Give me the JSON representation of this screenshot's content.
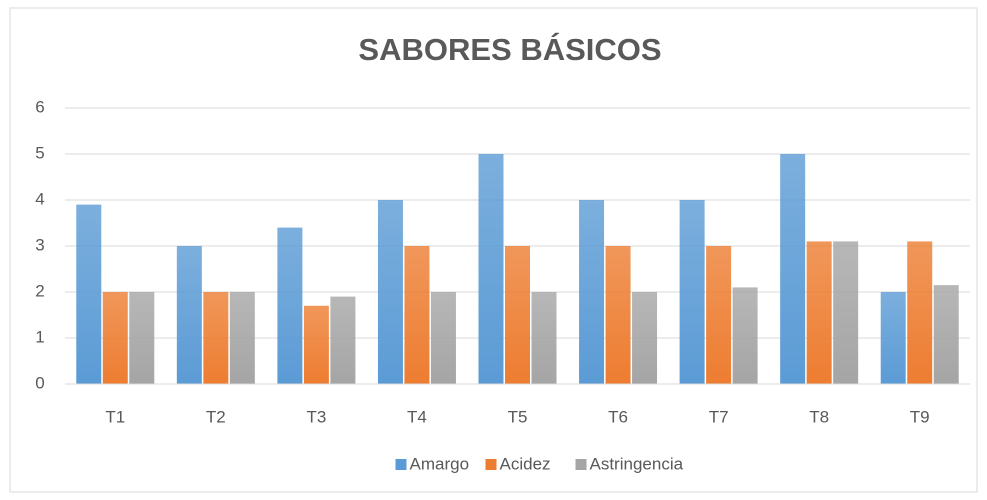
{
  "chart_data": {
    "type": "bar",
    "title": "SABORES BÁSICOS",
    "categories": [
      "T1",
      "T2",
      "T3",
      "T4",
      "T5",
      "T6",
      "T7",
      "T8",
      "T9"
    ],
    "series": [
      {
        "name": "Amargo",
        "color": "#5b9bd5",
        "values": [
          3.9,
          3,
          3.4,
          4,
          5,
          4,
          4,
          5,
          2
        ]
      },
      {
        "name": "Acidez",
        "color": "#ed7d31",
        "values": [
          2,
          2,
          1.7,
          3,
          3,
          3,
          3,
          3.1,
          3.1
        ]
      },
      {
        "name": "Astringencia",
        "color": "#a5a5a5",
        "values": [
          2,
          2,
          1.9,
          2,
          2,
          2,
          2.1,
          3.1,
          2.15
        ]
      }
    ],
    "ylim": [
      0,
      6
    ],
    "yticks": [
      0,
      1,
      2,
      3,
      4,
      5,
      6
    ],
    "grid": true,
    "legend": "bottom"
  }
}
